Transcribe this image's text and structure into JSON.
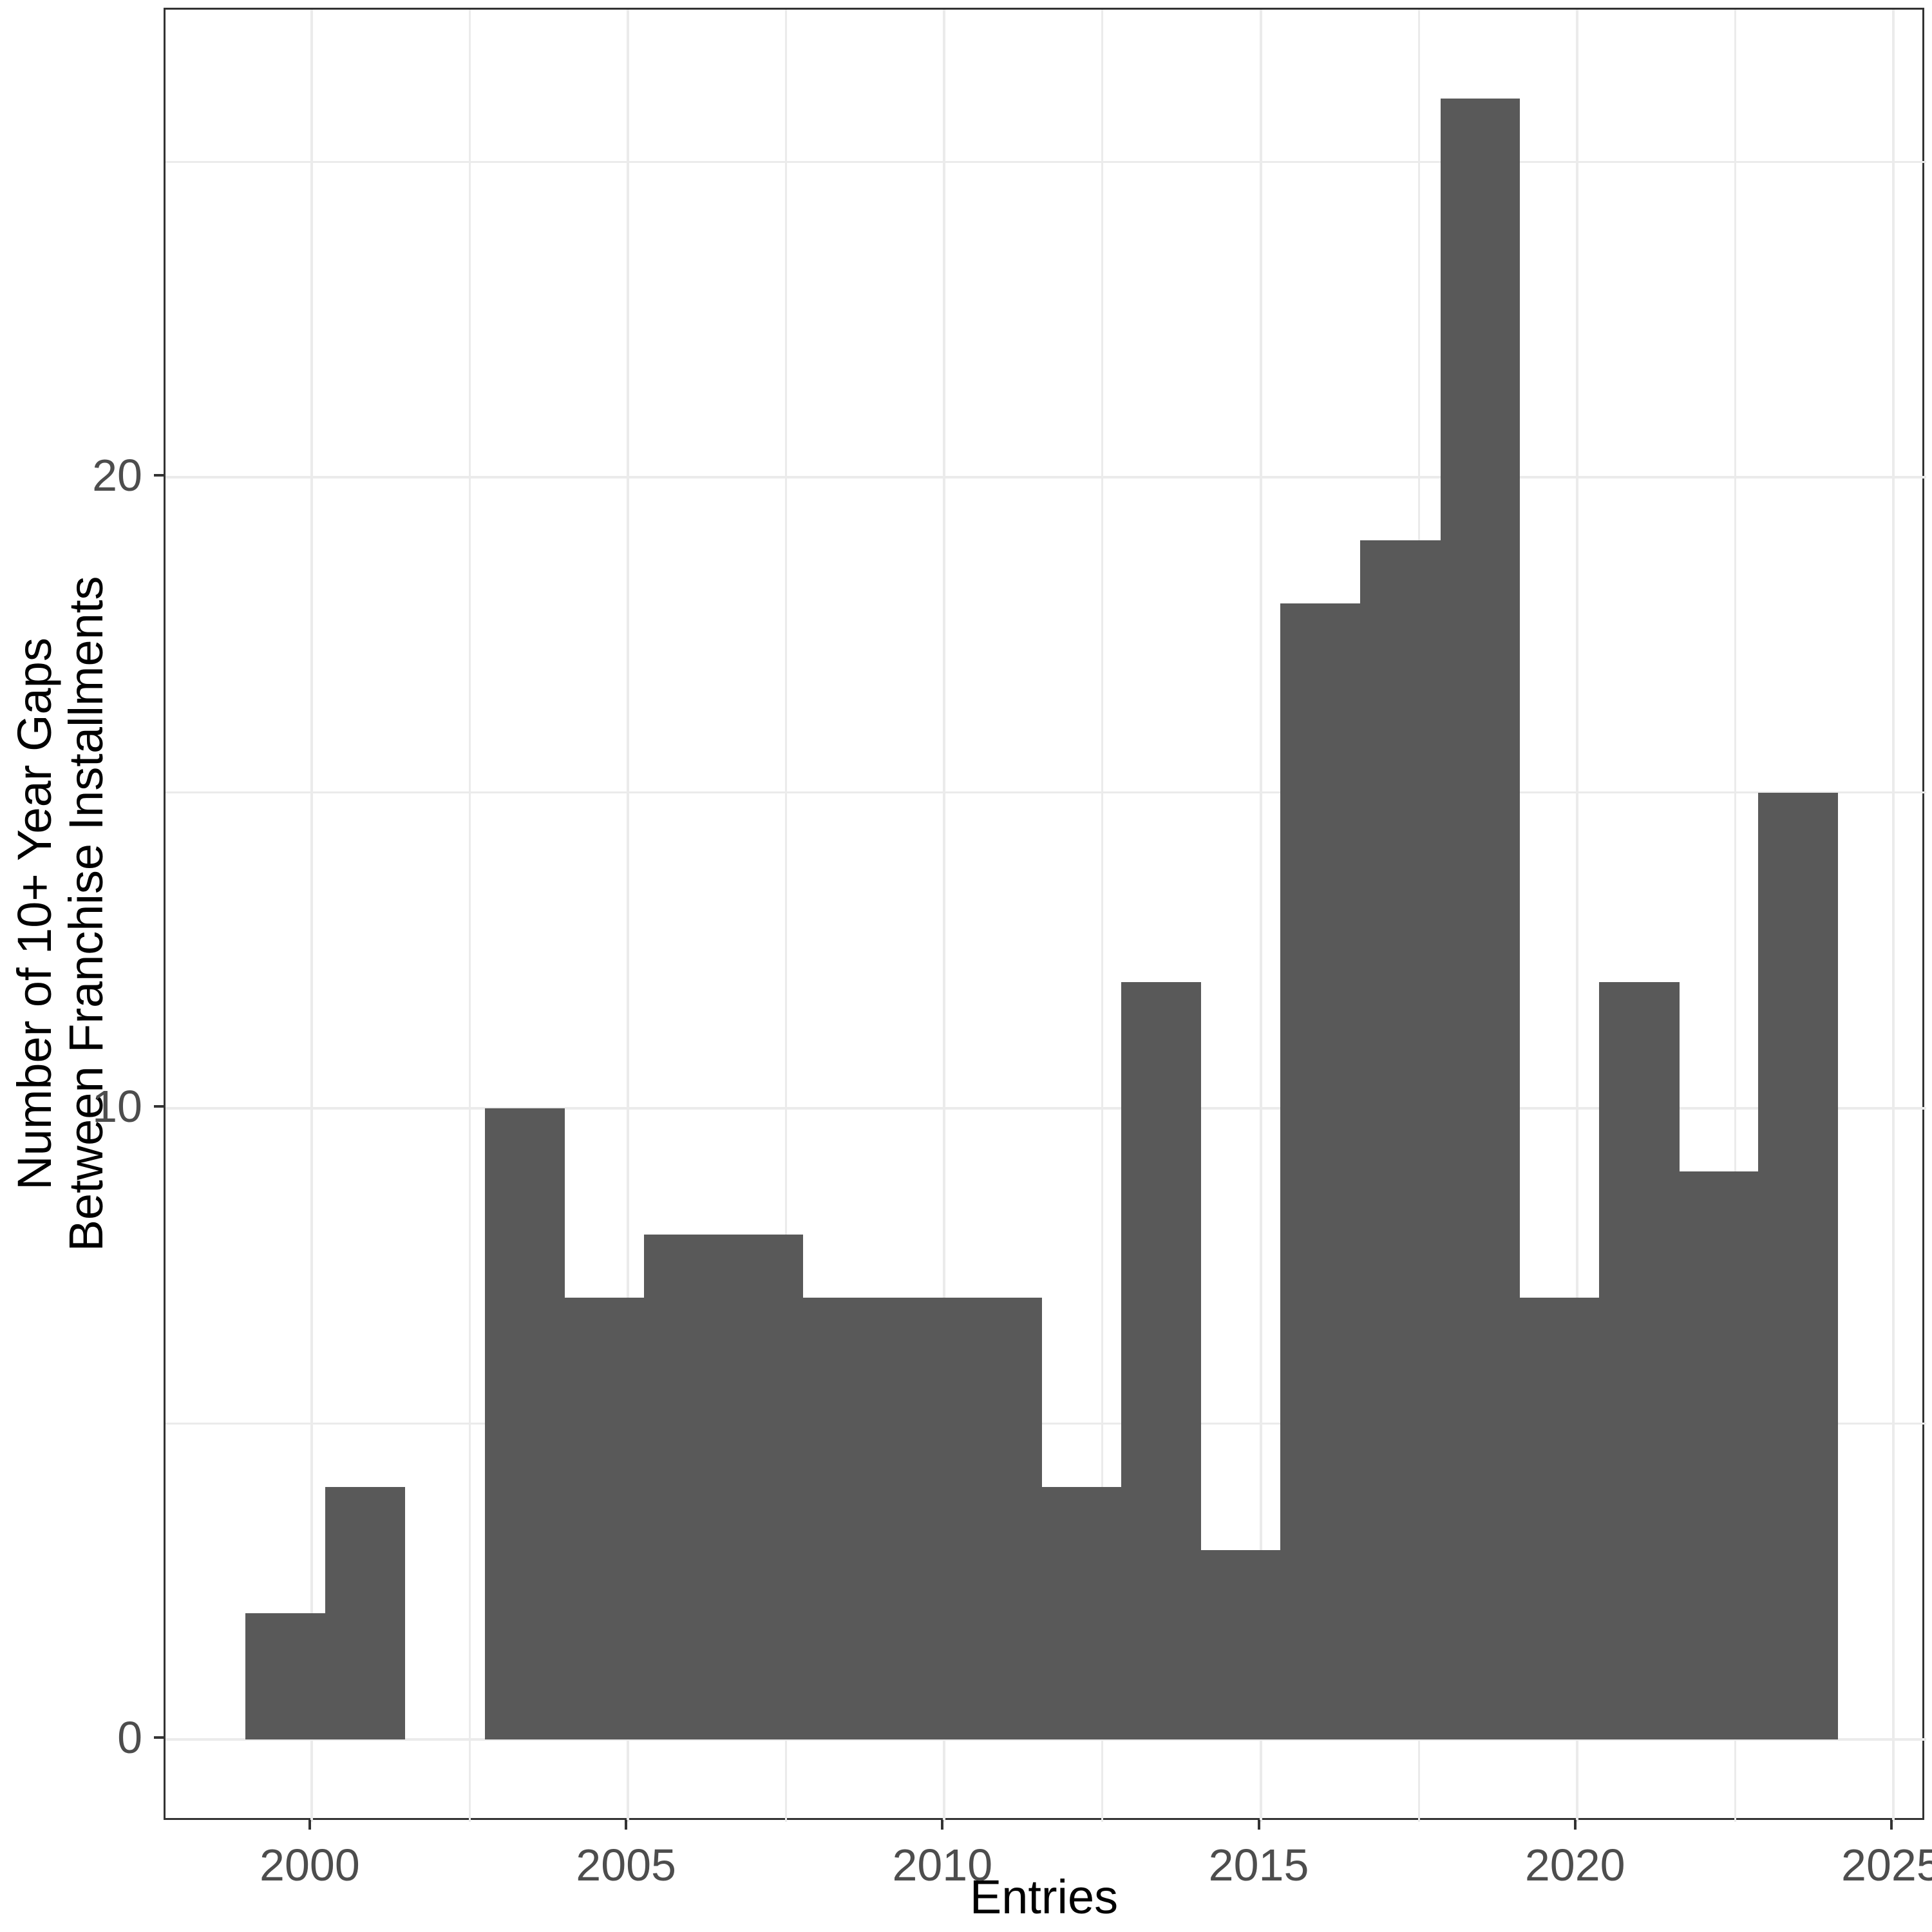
{
  "chart_data": {
    "type": "bar",
    "subtype": "histogram",
    "title": "",
    "xlabel": "Entries",
    "ylabel_lines": [
      "Number of 10+ Year Gaps",
      "Between Franchise Installments"
    ],
    "legend_position": "none",
    "grid": "on",
    "x_domain": [
      1997.69,
      2025.52
    ],
    "y_domain": [
      -1.31,
      27.41
    ],
    "x_major_ticks": [
      2000,
      2005,
      2010,
      2015,
      2020,
      2025
    ],
    "x_tick_labels": [
      "2000",
      "2005",
      "2010",
      "2015",
      "2020",
      "2025"
    ],
    "x_minor_gridlines": [
      2002.5,
      2007.5,
      2012.5,
      2017.5,
      2022.5
    ],
    "y_major_ticks": [
      0,
      10,
      20
    ],
    "y_tick_labels": [
      "0",
      "10",
      "20"
    ],
    "y_minor_gridlines": [
      5,
      15,
      25
    ],
    "bins": [
      {
        "start": 1998.95,
        "end": 2000.21,
        "count": 2
      },
      {
        "start": 2000.21,
        "end": 2001.47,
        "count": 4
      },
      {
        "start": 2001.47,
        "end": 2002.74,
        "count": 0
      },
      {
        "start": 2002.74,
        "end": 2003.99,
        "count": 10
      },
      {
        "start": 2003.99,
        "end": 2005.25,
        "count": 7
      },
      {
        "start": 2005.25,
        "end": 2006.5,
        "count": 8
      },
      {
        "start": 2006.5,
        "end": 2007.76,
        "count": 8
      },
      {
        "start": 2007.76,
        "end": 2009.02,
        "count": 7
      },
      {
        "start": 2009.02,
        "end": 2010.28,
        "count": 7
      },
      {
        "start": 2010.28,
        "end": 2011.54,
        "count": 7
      },
      {
        "start": 2011.54,
        "end": 2012.8,
        "count": 4
      },
      {
        "start": 2012.8,
        "end": 2014.05,
        "count": 12
      },
      {
        "start": 2014.05,
        "end": 2015.31,
        "count": 3
      },
      {
        "start": 2015.31,
        "end": 2016.57,
        "count": 18
      },
      {
        "start": 2016.57,
        "end": 2017.84,
        "count": 19
      },
      {
        "start": 2017.84,
        "end": 2019.09,
        "count": 26
      },
      {
        "start": 2019.09,
        "end": 2020.35,
        "count": 7
      },
      {
        "start": 2020.35,
        "end": 2021.61,
        "count": 12
      },
      {
        "start": 2021.61,
        "end": 2022.86,
        "count": 9
      },
      {
        "start": 2022.86,
        "end": 2024.12,
        "count": 15
      }
    ]
  },
  "style": {
    "bar_fill": "#595959",
    "grid_color": "#EBEBEB",
    "panel_border_color": "#333333",
    "tick_mark_color": "#333333",
    "tick_label_color": "#4D4D4D",
    "axis_title_color": "#000000",
    "background": "#FFFFFF"
  }
}
